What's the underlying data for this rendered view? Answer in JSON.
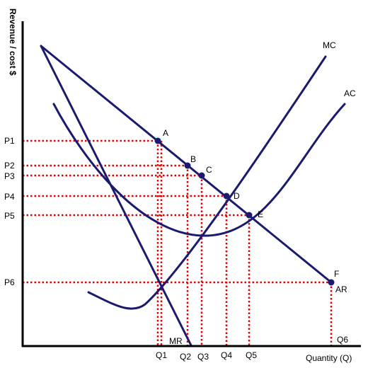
{
  "diagram": {
    "y_axis_title": "Revenue / cost $",
    "x_axis_title": "Quantity (Q)",
    "curves": {
      "mc": "MC",
      "ac": "AC",
      "mr": "MR",
      "ar": "AR"
    },
    "points": [
      "A",
      "B",
      "C",
      "D",
      "E",
      "F"
    ],
    "price_labels": [
      "P1",
      "P2",
      "P3",
      "P4",
      "P5",
      "P6"
    ],
    "quantity_labels": [
      "Q1",
      "Q2",
      "Q3",
      "Q4",
      "Q5",
      "Q6"
    ],
    "colors": {
      "curve": "#1a1a6e",
      "guide": "#e00000",
      "axis": "#000000",
      "point": "#1a1a6e"
    }
  }
}
